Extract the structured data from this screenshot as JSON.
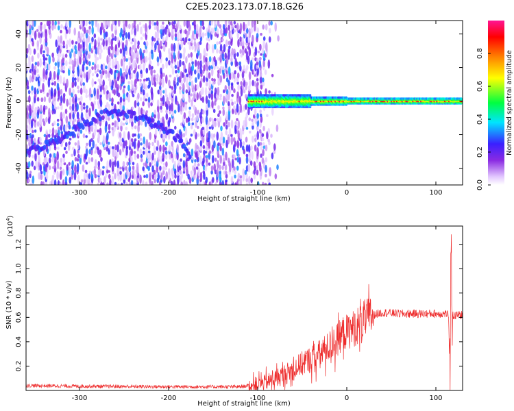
{
  "title": "C2E5.2023.173.07.18.G26",
  "chart_data": [
    {
      "type": "heatmap",
      "xlabel": "Height of straight line (km)",
      "ylabel": "Frequency (Hz)",
      "xlim": [
        -360,
        130
      ],
      "ylim": [
        -50,
        48
      ],
      "x_ticks": [
        -300,
        -200,
        -100,
        0,
        100
      ],
      "y_ticks": [
        -40,
        -20,
        0,
        20,
        40
      ],
      "colorbar": {
        "label": "Normalized spectral amplitude",
        "range": [
          0,
          1
        ],
        "ticks": [
          "0.0",
          "0.2",
          "0.4",
          "0.6",
          "0.8"
        ],
        "tick_values": [
          0.0,
          0.2,
          0.4,
          0.6,
          0.8
        ],
        "colors": [
          "#ffffff",
          "#e3c8ff",
          "#8a2be2",
          "#3a20ff",
          "#00e5ff",
          "#00ff40",
          "#ffff00",
          "#ff8000",
          "#ff0000",
          "#ff1493"
        ]
      },
      "ridge": {
        "description_points_km": [
          -360,
          -320,
          -300,
          -270,
          -250,
          -230,
          -210,
          -190,
          -175
        ],
        "frequency_hz": [
          -31,
          -22,
          -15,
          -7,
          -7,
          -10,
          -15,
          -22,
          -33
        ]
      },
      "carrier": {
        "x_range_km": [
          -110,
          130
        ],
        "frequency_hz": 0,
        "peak_amplitude_x_km": [
          -50,
          0,
          30,
          90,
          100
        ]
      }
    },
    {
      "type": "line",
      "xlabel": "Height of straight line (km)",
      "ylabel": "SNR (10 * v/v)",
      "y_multiplier": "(x10",
      "y_multiplier_exp": "4",
      "y_multiplier_close": ")",
      "xlim": [
        -360,
        130
      ],
      "ylim": [
        0,
        1.35
      ],
      "x_ticks": [
        -300,
        -200,
        -100,
        0,
        100
      ],
      "y_ticks": [
        0.2,
        0.4,
        0.6,
        0.8,
        1.0,
        1.2
      ],
      "y_tick_labels": [
        "0.2",
        "0.4",
        "0.6",
        "0.8",
        "1.0",
        "1.2"
      ],
      "color": "#ee2c2c",
      "series": [
        {
          "x": [
            -360,
            -300,
            -200,
            -120,
            -100,
            -90,
            -80,
            -70,
            -60,
            -50,
            -40,
            -30,
            -20,
            -10,
            -5,
            0,
            10,
            20,
            30,
            40,
            60,
            80,
            100,
            110,
            114,
            116,
            117,
            118,
            120,
            125,
            130
          ],
          "y": [
            0.04,
            0.035,
            0.03,
            0.03,
            0.05,
            0.07,
            0.1,
            0.13,
            0.17,
            0.22,
            0.26,
            0.3,
            0.36,
            0.42,
            0.47,
            0.48,
            0.52,
            0.58,
            0.62,
            0.64,
            0.63,
            0.63,
            0.63,
            0.63,
            0.63,
            0.1,
            1.25,
            0.62,
            0.61,
            0.62,
            0.62
          ]
        }
      ]
    }
  ]
}
